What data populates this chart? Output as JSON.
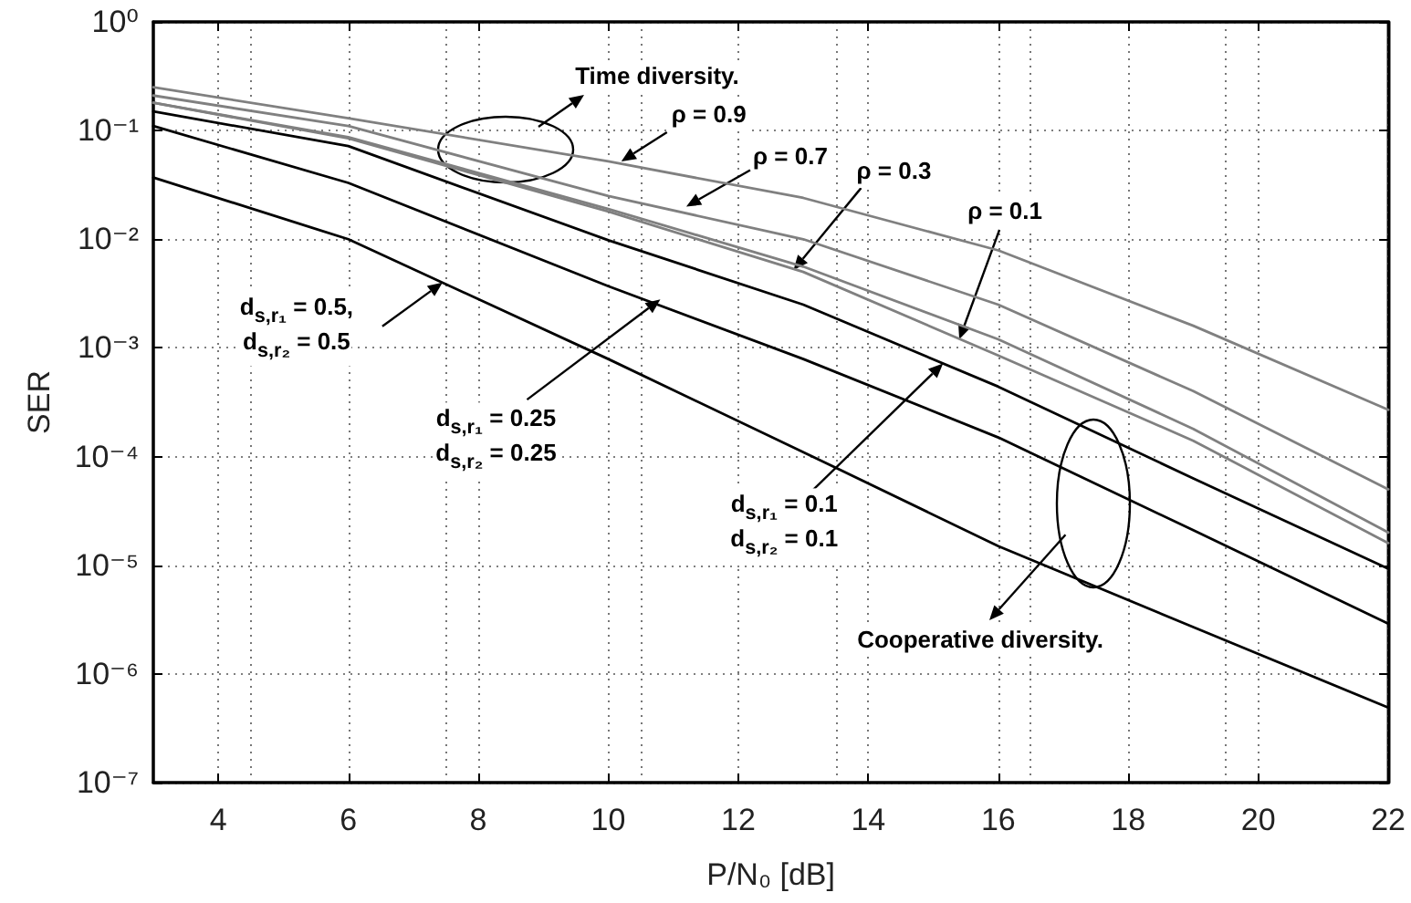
{
  "chart_data": {
    "type": "line",
    "xlabel": "P/N₀ [dB]",
    "ylabel": "SER",
    "x": [
      3,
      6,
      10,
      13,
      16,
      19,
      22
    ],
    "series": [
      {
        "color": "#808080",
        "values": [
          0.25,
          0.13,
          0.052,
          0.024,
          0.0079,
          0.0016,
          0.00027
        ]
      },
      {
        "color": "#808080",
        "values": [
          0.21,
          0.11,
          0.025,
          0.01,
          0.0025,
          0.0004,
          5e-05
        ]
      },
      {
        "color": "#808080",
        "values": [
          0.18,
          0.087,
          0.019,
          0.0056,
          0.0012,
          0.00018,
          2e-05
        ]
      },
      {
        "color": "#808080",
        "values": [
          0.18,
          0.085,
          0.018,
          0.005,
          0.00085,
          0.00014,
          1.6e-05
        ]
      },
      {
        "color": "#000000",
        "values": [
          0.15,
          0.072,
          0.0098,
          0.0025,
          0.00044,
          6.3e-05,
          9.3e-06
        ]
      },
      {
        "color": "#000000",
        "values": [
          0.11,
          0.033,
          0.0037,
          0.00079,
          0.00015,
          2.1e-05,
          2.9e-06
        ]
      },
      {
        "color": "#000000",
        "values": [
          0.037,
          0.01,
          0.00079,
          0.00011,
          1.5e-05,
          2.7e-06,
          4.9e-07
        ]
      }
    ],
    "xlim": [
      3,
      22
    ],
    "xticks": [
      4,
      6,
      8,
      10,
      12,
      14,
      16,
      18,
      20,
      22
    ],
    "ylim": [
      1e-07,
      1
    ],
    "yticks": [
      {
        "value": 1e-07,
        "label": "10⁻⁷"
      },
      {
        "value": 1e-06,
        "label": "10⁻⁶"
      },
      {
        "value": 1e-05,
        "label": "10⁻⁵"
      },
      {
        "value": 0.0001,
        "label": "10⁻⁴"
      },
      {
        "value": 0.001,
        "label": "10⁻³"
      },
      {
        "value": 0.01,
        "label": "10⁻²"
      },
      {
        "value": 0.1,
        "label": "10⁻¹"
      },
      {
        "value": 1,
        "label": "10⁰"
      }
    ],
    "log": "y",
    "grid": true,
    "marker": "none",
    "line_style": "solid",
    "annotations": [
      "Time diversity.",
      {
        "text": "ρ = 0.9",
        "x": 10.2,
        "y": 0.052
      },
      {
        "text": "ρ = 0.7",
        "x": 11.2,
        "y": 0.02
      },
      {
        "text": "ρ = 0.3",
        "x": 12.85,
        "y": 0.0052
      },
      {
        "text": "ρ = 0.1",
        "x": 15.4,
        "y": 0.0012
      },
      {
        "text": "d$_{s,r₁}$ = 0.5,",
        "x": 7.45,
        "y": 0.004
      },
      "d$_{s,r₂}$ = 0.5",
      {
        "text": "d$_{s,r₁}$ = 0.25",
        "x": 10.8,
        "y": 0.0028
      },
      "d$_{s,r₂}$ = 0.25",
      {
        "text": "d$_{s,r₁}$ = 0.1",
        "x": 15.15,
        "y": 0.00072
      },
      "d$_{s,r₂}$ = 0.1",
      "Cooperative diversity."
    ]
  }
}
